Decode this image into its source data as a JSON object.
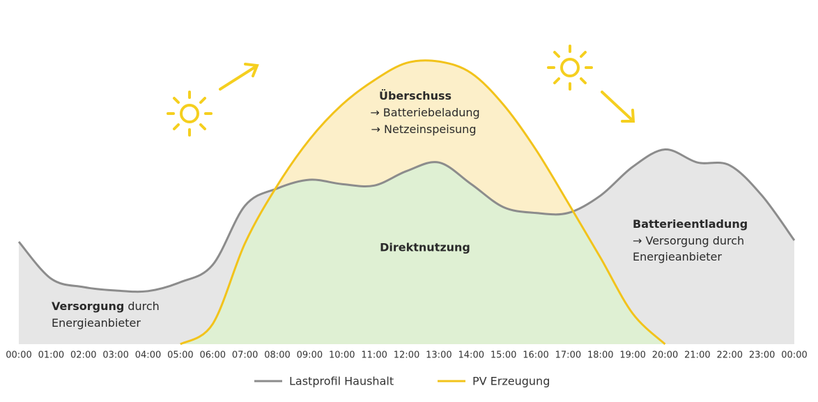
{
  "chart_data": {
    "type": "area",
    "categories": [
      "00:00",
      "01:00",
      "02:00",
      "03:00",
      "04:00",
      "05:00",
      "06:00",
      "07:00",
      "08:00",
      "09:00",
      "10:00",
      "11:00",
      "12:00",
      "13:00",
      "14:00",
      "15:00",
      "16:00",
      "17:00",
      "18:00",
      "19:00",
      "20:00",
      "21:00",
      "22:00",
      "23:00",
      "00:00"
    ],
    "ylim": [
      0,
      100
    ],
    "series": [
      {
        "name": "Lastprofil Haushalt",
        "color": "#8c8c8c",
        "fill": "#e6e6e6",
        "values": [
          35.5,
          22.7,
          19.8,
          18.6,
          18.4,
          21.5,
          27.5,
          48,
          54,
          57,
          55.5,
          55,
          60,
          63,
          55.5,
          47.5,
          45.5,
          45.5,
          51.5,
          61.5,
          67.5,
          63,
          62,
          51.5,
          36
        ]
      },
      {
        "name": "PV Erzeugung",
        "color": "#f2c31b",
        "fill": "#fcefc9",
        "values": [
          null,
          null,
          null,
          null,
          null,
          0,
          7,
          35,
          55,
          71,
          83,
          91.5,
          97.5,
          98,
          94,
          83,
          67.5,
          49,
          30,
          10.6,
          0,
          null,
          null,
          null,
          null
        ]
      }
    ],
    "overlap_fill": "#dff0d3",
    "annotations": [
      {
        "title": "Überschuss",
        "lines": [
          "→ Batteriebeladung",
          "→ Netzeinspeisung"
        ]
      },
      {
        "title": "Direktnutzung"
      },
      {
        "title": "Batterieentladung",
        "lines": [
          "→ Versorgung durch",
          "Energieanbieter"
        ]
      },
      {
        "title": "Versorgung",
        "title_rest": "durch",
        "lines": [
          "Energieanbieter"
        ]
      }
    ],
    "legend": "bottom"
  }
}
